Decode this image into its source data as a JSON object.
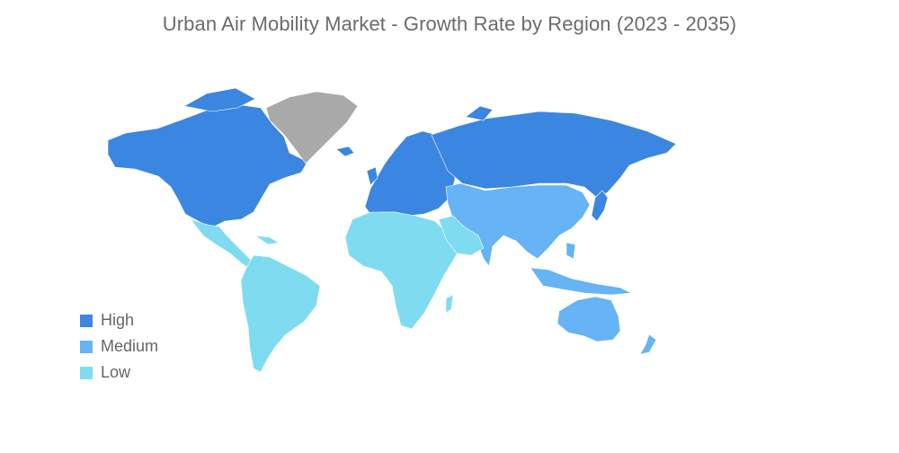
{
  "title": "Urban Air Mobility Market - Growth Rate by Region (2023 - 2035)",
  "colors": {
    "high": "#3b86e0",
    "medium": "#66b3f5",
    "low": "#7fdcf0",
    "no_data": "#a9a9a9"
  },
  "legend": [
    {
      "label": "High",
      "level": "high"
    },
    {
      "label": "Medium",
      "level": "medium"
    },
    {
      "label": "Low",
      "level": "low"
    }
  ],
  "regions": [
    {
      "name": "North America",
      "level": "high"
    },
    {
      "name": "Europe",
      "level": "high"
    },
    {
      "name": "Russia",
      "level": "high"
    },
    {
      "name": "Japan",
      "level": "high"
    },
    {
      "name": "Asia-Pacific",
      "level": "medium"
    },
    {
      "name": "Australia and New Zealand",
      "level": "medium"
    },
    {
      "name": "Latin America",
      "level": "low"
    },
    {
      "name": "Middle East and Africa",
      "level": "low"
    },
    {
      "name": "Greenland",
      "level": "no_data"
    }
  ]
}
